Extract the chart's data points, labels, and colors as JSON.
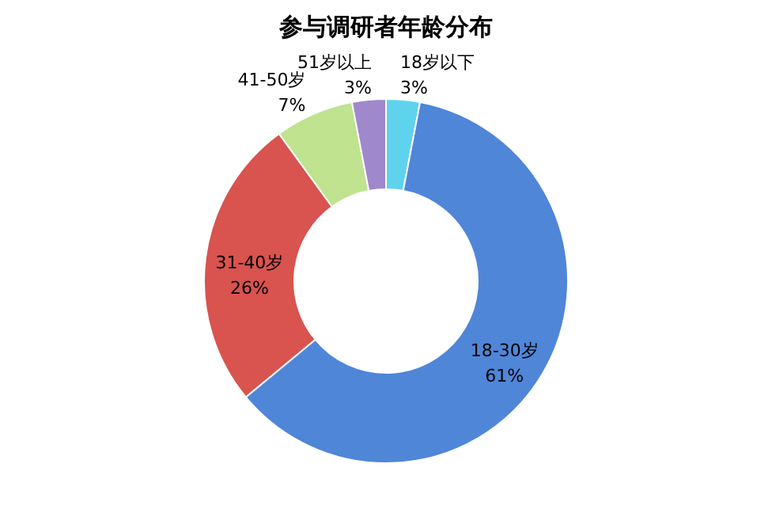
{
  "chart_data": {
    "type": "donut",
    "title": "参与调研者年龄分布",
    "categories": [
      "18岁以下",
      "18-30岁",
      "31-40岁",
      "41-50岁",
      "51岁以上"
    ],
    "values": [
      3,
      61,
      26,
      7,
      3
    ],
    "value_labels": [
      "3%",
      "61%",
      "26%",
      "7%",
      "3%"
    ],
    "colors": [
      "#5fd3ee",
      "#4f86d8",
      "#d9534f",
      "#bfe38f",
      "#9f88cc"
    ],
    "legend": false
  }
}
